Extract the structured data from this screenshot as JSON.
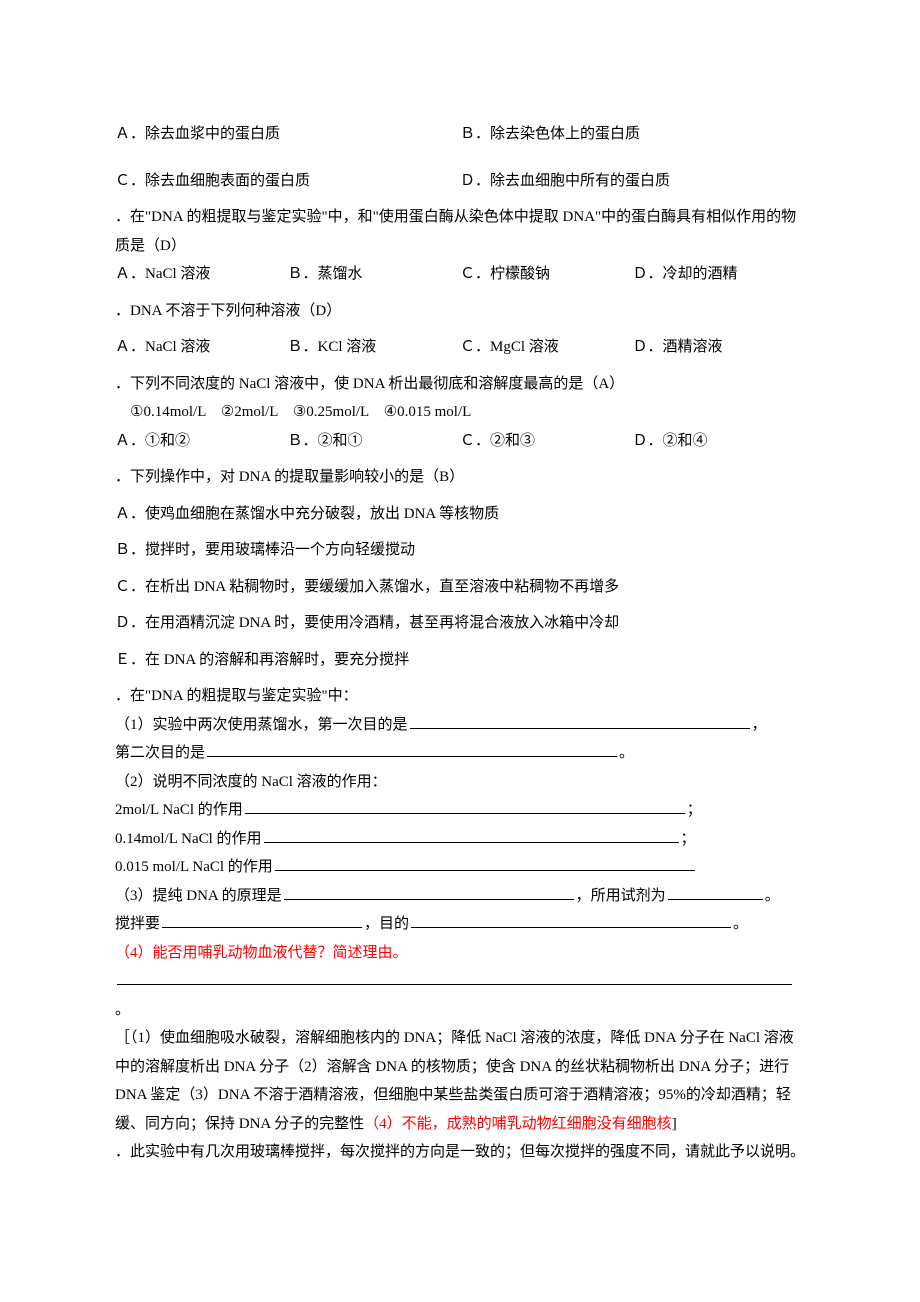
{
  "q1": {
    "a": "Ａ．除去血浆中的蛋白质",
    "b": "Ｂ．除去染色体上的蛋白质",
    "c": "Ｃ．除去血细胞表面的蛋白质",
    "d": "Ｄ．除去血细胞中所有的蛋白质"
  },
  "q2": {
    "stem": "．在\"DNA 的粗提取与鉴定实验\"中，和\"使用蛋白酶从染色体中提取 DNA\"中的蛋白酶具有相似作用的物质是（D）",
    "a": "Ａ．NaCl 溶液",
    "b": "Ｂ．蒸馏水",
    "c": "Ｃ．柠檬酸钠",
    "d": "Ｄ．冷却的酒精"
  },
  "q3": {
    "stem": "．DNA 不溶于下列何种溶液（D）",
    "a": "Ａ．NaCl 溶液",
    "b": "Ｂ．KCl 溶液",
    "c": "Ｃ．MgCl 溶液",
    "d": "Ｄ．酒精溶液"
  },
  "q4": {
    "stem": "．下列不同浓度的 NaCl 溶液中，使 DNA 析出最彻底和溶解度最高的是（A）",
    "line2": "①0.14mol/L　②2mol/L　③0.25mol/L　④0.015 mol/L",
    "a": "Ａ．①和②",
    "b": "Ｂ．②和①",
    "c": "Ｃ．②和③",
    "d": "Ｄ．②和④"
  },
  "q5": {
    "stem": "．下列操作中，对 DNA 的提取量影响较小的是（B）",
    "a": "Ａ．使鸡血细胞在蒸馏水中充分破裂，放出 DNA 等核物质",
    "b": "Ｂ．搅拌时，要用玻璃棒沿一个方向轻缓搅动",
    "c": "Ｃ．在析出 DNA 粘稠物时，要缓缓加入蒸馏水，直至溶液中粘稠物不再增多",
    "d": "Ｄ．在用酒精沉淀 DNA 时，要使用冷酒精，甚至再将混合液放入冰箱中冷却",
    "e": "Ｅ．在 DNA 的溶解和再溶解时，要充分搅拌"
  },
  "q6": {
    "stem": "．在\"DNA 的粗提取与鉴定实验\"中：",
    "p1a": "（1）实验中两次使用蒸馏水，第一次目的是",
    "p1b": "，",
    "p1c": "第二次目的是",
    "p1d": "。",
    "p2": "（2）说明不同浓度的 NaCl 溶液的作用：",
    "p2a": "2mol/L NaCl 的作用",
    "p2b": "0.14mol/L NaCl 的作用",
    "p2c": "0.015 mol/L NaCl 的作用",
    "semi": "；",
    "p3a": "（3）提纯 DNA 的原理是",
    "p3b": "，所用试剂为",
    "p3c": "。",
    "p3d": "搅拌要",
    "p3e": "，目的",
    "p3f": "。",
    "p4": "（4）能否用哺乳动物血液代替？简述理由。",
    "p4end": "。"
  },
  "answer": {
    "text1": "［（1）使血细胞吸水破裂，溶解细胞核内的 DNA；降低 NaCl 溶液的浓度，降低 DNA 分子在 NaCl 溶液中的溶解度析出 DNA 分子（2）溶解含 DNA 的核物质；使含 DNA 的丝状粘稠物析出 DNA 分子；进行 DNA 鉴定（3）DNA 不溶于酒精溶液，但细胞中某些盐类蛋白质可溶于酒精溶液；95%的冷却酒精；轻缓、同方向；保持 DNA 分子的完整性",
    "text2": "（4）不能，成熟的哺乳动物红细胞没有细胞核",
    "text3": "]"
  },
  "q7": {
    "stem": "．此实验中有几次用玻璃棒搅拌，每次搅拌的方向是一致的；但每次搅拌的强度不同，请就此予以说明。"
  },
  "fill_widths": {
    "w1": 340,
    "w2": 410,
    "w3": 440,
    "w4": 415,
    "w5": 420,
    "w6": 290,
    "w7": 95,
    "w8": 200,
    "w9": 320,
    "w10": 675
  }
}
